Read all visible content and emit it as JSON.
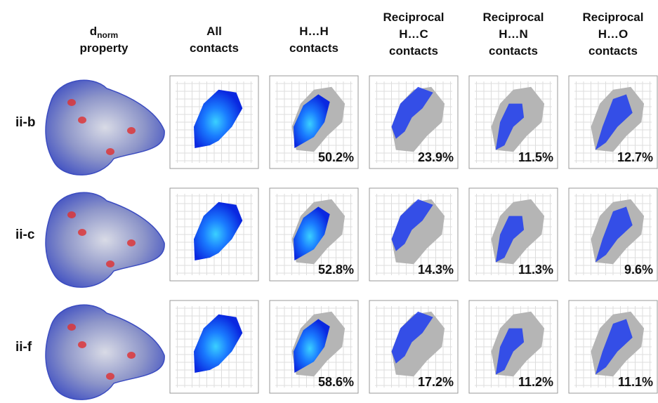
{
  "header": {
    "dnorm": {
      "symbol": "d",
      "subscript": "norm",
      "line2": "property"
    },
    "columns": [
      [
        "All",
        "contacts"
      ],
      [
        "H…H",
        "contacts"
      ],
      [
        "Reciprocal",
        "H…C",
        "contacts"
      ],
      [
        "Reciprocal",
        "H…N",
        "contacts"
      ],
      [
        "Reciprocal",
        "H…O",
        "contacts"
      ]
    ]
  },
  "rows": [
    {
      "label": "ii-b",
      "percentages": [
        "50.2%",
        "23.9%",
        "11.5%",
        "12.7%"
      ]
    },
    {
      "label": "ii-c",
      "percentages": [
        "52.8%",
        "14.3%",
        "11.3%",
        "9.6%"
      ]
    },
    {
      "label": "ii-f",
      "percentages": [
        "58.6%",
        "17.2%",
        "11.2%",
        "11.1%"
      ]
    }
  ]
}
